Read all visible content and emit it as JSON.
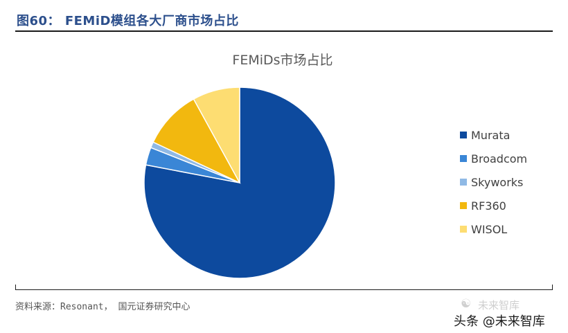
{
  "figure": {
    "title": "图60：    FEMiD模组各大厂商市场占比",
    "source": "资料来源：Resonant，  国元证券研究中心"
  },
  "watermark": {
    "top_text": "未来智库",
    "icon": "wechat-icon",
    "bottom_text": "头条 @未来智库"
  },
  "chart_data": {
    "type": "pie",
    "title": "FEMiDs市场占比",
    "legend_position": "right",
    "start_angle_deg": 0,
    "direction": "clockwise",
    "slices": [
      {
        "label": "Murata",
        "value": 78,
        "color": "#0d4a9e"
      },
      {
        "label": "Broadcom",
        "value": 3,
        "color": "#3a86d6"
      },
      {
        "label": "Skyworks",
        "value": 1,
        "color": "#8fb9e5"
      },
      {
        "label": "RF360",
        "value": 10,
        "color": "#f2b80f"
      },
      {
        "label": "WISOL",
        "value": 8,
        "color": "#fddd72"
      }
    ]
  }
}
